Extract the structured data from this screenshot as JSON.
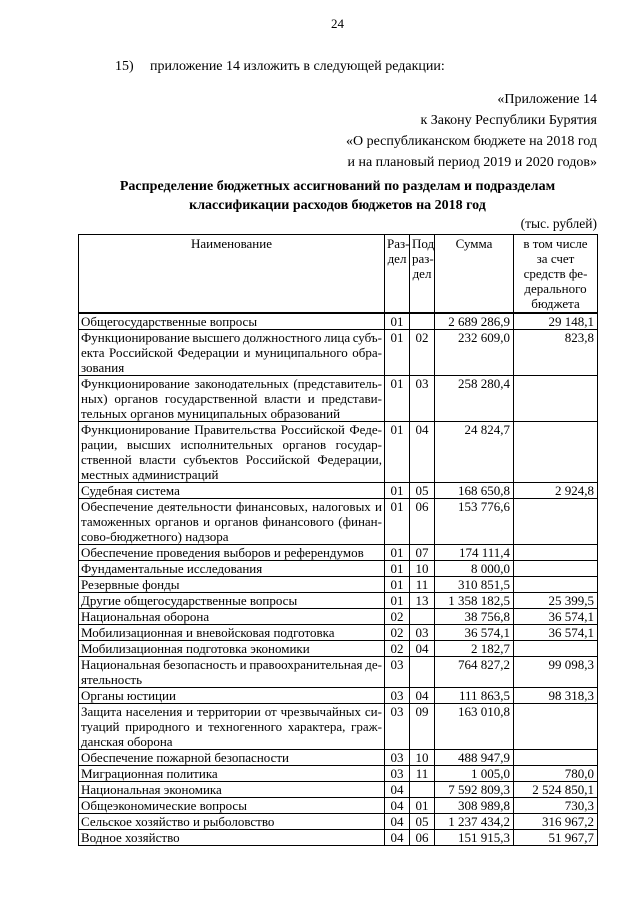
{
  "page": {
    "number": "24",
    "clause": {
      "label": "15)",
      "text": "приложение 14 изложить в следующей редакции:"
    },
    "appendix_reference": "«Приложение 14\nк Закону Республики Бурятия\n«О республиканском бюджете на 2018 год\nи на плановый период 2019 и 2020 годов»",
    "title": "Распределение бюджетных ассигнований по разделам и подразделам\nклассификации расходов бюджетов на 2018 год",
    "units_note": "(тыс. рублей)"
  },
  "table": {
    "headers": {
      "name": "Наименование",
      "razdel": "Раз-\nдел",
      "podrazdel": "Под-\nраз-\nдел",
      "summa": "Сумма",
      "federal": "в том числе\nза счет\nсредств фе-\nдерального\nбюджета"
    },
    "rows": [
      {
        "name": "Общегосударственные вопросы",
        "rd": "01",
        "pd": "",
        "sum": "2 689 286,9",
        "fed": "29 148,1"
      },
      {
        "name": "Функционирование высшего должностного лица субъ-\nекта Российской Федерации и муниципального обра-\nзования",
        "rd": "01",
        "pd": "02",
        "sum": "232 609,0",
        "fed": "823,8"
      },
      {
        "name": "Функционирование законодательных (представитель-\nных) органов государственной власти и представи-\nтельных органов муниципальных образований",
        "rd": "01",
        "pd": "03",
        "sum": "258 280,4",
        "fed": ""
      },
      {
        "name": "Функционирование Правительства Российской Феде-\nрации, высших исполнительных органов государ-\nственной власти субъектов Российской Федерации,\nместных администраций",
        "rd": "01",
        "pd": "04",
        "sum": "24 824,7",
        "fed": ""
      },
      {
        "name": "Судебная система",
        "rd": "01",
        "pd": "05",
        "sum": "168 650,8",
        "fed": "2 924,8"
      },
      {
        "name": "Обеспечение деятельности финансовых, налоговых и\nтаможенных органов и органов финансового (финан-\nсово-бюджетного) надзора",
        "rd": "01",
        "pd": "06",
        "sum": "153 776,6",
        "fed": ""
      },
      {
        "name": "Обеспечение проведения выборов и референдумов",
        "rd": "01",
        "pd": "07",
        "sum": "174 111,4",
        "fed": ""
      },
      {
        "name": "Фундаментальные исследования",
        "rd": "01",
        "pd": "10",
        "sum": "8 000,0",
        "fed": ""
      },
      {
        "name": "Резервные фонды",
        "rd": "01",
        "pd": "11",
        "sum": "310 851,5",
        "fed": ""
      },
      {
        "name": "Другие общегосударственные вопросы",
        "rd": "01",
        "pd": "13",
        "sum": "1 358 182,5",
        "fed": "25 399,5"
      },
      {
        "name": "Национальная оборона",
        "rd": "02",
        "pd": "",
        "sum": "38 756,8",
        "fed": "36 574,1"
      },
      {
        "name": "Мобилизационная и вневойсковая подготовка",
        "rd": "02",
        "pd": "03",
        "sum": "36 574,1",
        "fed": "36 574,1"
      },
      {
        "name": "Мобилизационная подготовка экономики",
        "rd": "02",
        "pd": "04",
        "sum": "2 182,7",
        "fed": ""
      },
      {
        "name": "Национальная безопасность и правоохранительная де-\nятельность",
        "rd": "03",
        "pd": "",
        "sum": "764 827,2",
        "fed": "99 098,3"
      },
      {
        "name": "Органы юстиции",
        "rd": "03",
        "pd": "04",
        "sum": "111 863,5",
        "fed": "98 318,3"
      },
      {
        "name": "Защита населения и территории от чрезвычайных си-\nтуаций природного и техногенного характера, граж-\nданская оборона",
        "rd": "03",
        "pd": "09",
        "sum": "163 010,8",
        "fed": ""
      },
      {
        "name": "Обеспечение пожарной безопасности",
        "rd": "03",
        "pd": "10",
        "sum": "488 947,9",
        "fed": ""
      },
      {
        "name": "Миграционная политика",
        "rd": "03",
        "pd": "11",
        "sum": "1 005,0",
        "fed": "780,0"
      },
      {
        "name": "Национальная экономика",
        "rd": "04",
        "pd": "",
        "sum": "7 592 809,3",
        "fed": "2 524 850,1"
      },
      {
        "name": "Общеэкономические вопросы",
        "rd": "04",
        "pd": "01",
        "sum": "308 989,8",
        "fed": "730,3"
      },
      {
        "name": "Сельское хозяйство и рыболовство",
        "rd": "04",
        "pd": "05",
        "sum": "1 237 434,2",
        "fed": "316 967,2"
      },
      {
        "name": "Водное хозяйство",
        "rd": "04",
        "pd": "06",
        "sum": "151 915,3",
        "fed": "51 967,7"
      }
    ]
  }
}
